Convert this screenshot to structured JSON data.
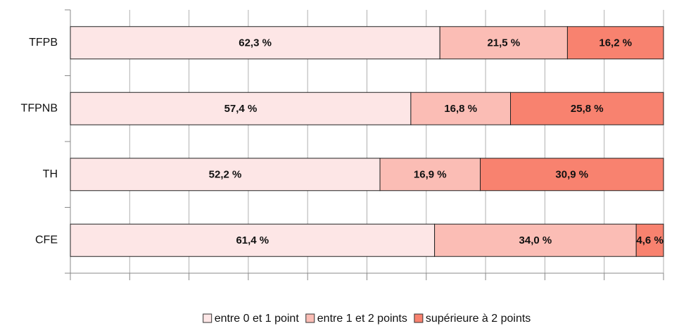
{
  "chart_data": {
    "type": "stacked-barh",
    "categories": [
      "TFPB",
      "TFPNB",
      "TH",
      "CFE"
    ],
    "series": [
      {
        "name": "entre 0 et 1 point",
        "color": "#fde6e6",
        "values": [
          62.3,
          57.4,
          52.2,
          61.4
        ],
        "value_labels": [
          "62,3 %",
          "57,4 %",
          "52,2 %",
          "61,4 %"
        ]
      },
      {
        "name": "entre 1 et 2 points",
        "color": "#fbbdb5",
        "values": [
          21.5,
          16.8,
          16.9,
          34.0
        ],
        "value_labels": [
          "21,5 %",
          "16,8 %",
          "16,9 %",
          "34,0 %"
        ]
      },
      {
        "name": "supérieure à 2 points",
        "color": "#f8826f",
        "values": [
          16.2,
          25.8,
          30.9,
          4.6
        ],
        "value_labels": [
          "16,2 %",
          "25,8 %",
          "30,9 %",
          "4,6 %"
        ]
      }
    ],
    "xlim": [
      0,
      100
    ],
    "xticks": [
      0,
      10,
      20,
      30,
      40,
      50,
      60,
      70,
      80,
      90,
      100
    ],
    "grid": true,
    "legend": "bottom"
  }
}
